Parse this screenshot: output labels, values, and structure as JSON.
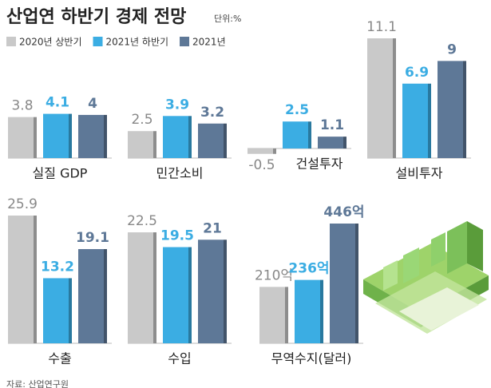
{
  "title": "산업연 하반기 경제 전망",
  "unit": "단위:%",
  "legend": [
    {
      "name": "2020년 상반기",
      "color": "#c9c9c9"
    },
    {
      "name": "2021년 하반기",
      "color": "#3bade3"
    },
    {
      "name": "2021년",
      "color": "#5e7897"
    }
  ],
  "chart_data": [
    {
      "type": "bar",
      "title": "실질 GDP",
      "values": [
        3.8,
        4.1,
        4.0
      ]
    },
    {
      "type": "bar",
      "title": "민간소비",
      "values": [
        2.5,
        3.9,
        3.2
      ]
    },
    {
      "type": "bar",
      "title": "건설투자",
      "values": [
        -0.5,
        2.5,
        1.1
      ]
    },
    {
      "type": "bar",
      "title": "설비투자",
      "values": [
        11.1,
        6.9,
        9.0
      ]
    },
    {
      "type": "bar",
      "title": "수출",
      "values": [
        25.9,
        13.2,
        19.1
      ]
    },
    {
      "type": "bar",
      "title": "수입",
      "values": [
        22.5,
        19.5,
        21.0
      ]
    },
    {
      "type": "bar",
      "title": "무역수지(달러)",
      "values": [
        210,
        236,
        446
      ],
      "value_labels": [
        "210억",
        "236억",
        "446억"
      ]
    }
  ],
  "source": "자료: 산업연구원"
}
